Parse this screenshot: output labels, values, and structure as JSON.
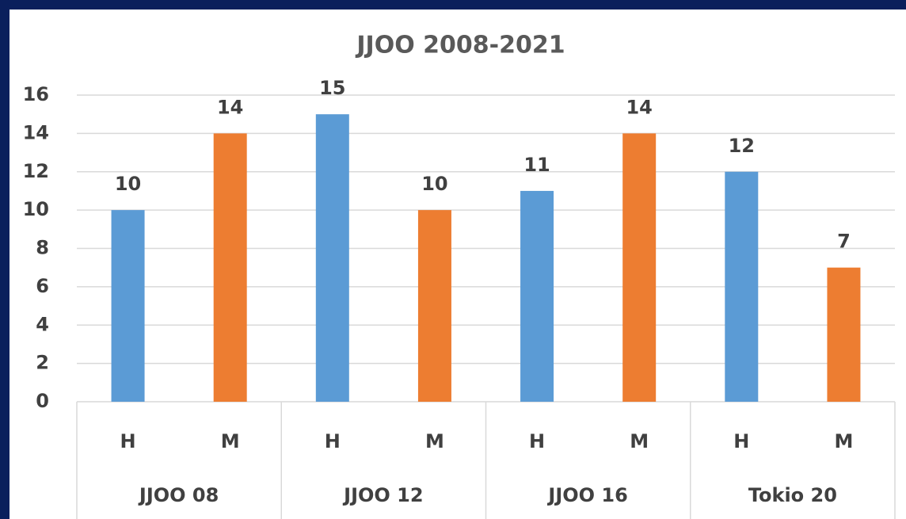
{
  "chart_data": {
    "type": "bar",
    "title": "JJOO 2008-2021",
    "categories": [
      "H",
      "M",
      "H",
      "M",
      "H",
      "M",
      "H",
      "M"
    ],
    "groups": [
      "JJOO 08",
      "JJOO 12",
      "JJOO 16",
      "Tokio 20"
    ],
    "values": [
      10,
      14,
      15,
      10,
      11,
      14,
      12,
      7
    ],
    "colors": [
      "#5b9bd5",
      "#ed7d31",
      "#5b9bd5",
      "#ed7d31",
      "#5b9bd5",
      "#ed7d31",
      "#5b9bd5",
      "#ed7d31"
    ],
    "ylim": [
      0,
      16
    ],
    "yticks": [
      0,
      2,
      4,
      6,
      8,
      10,
      12,
      14,
      16
    ],
    "grid": true
  }
}
